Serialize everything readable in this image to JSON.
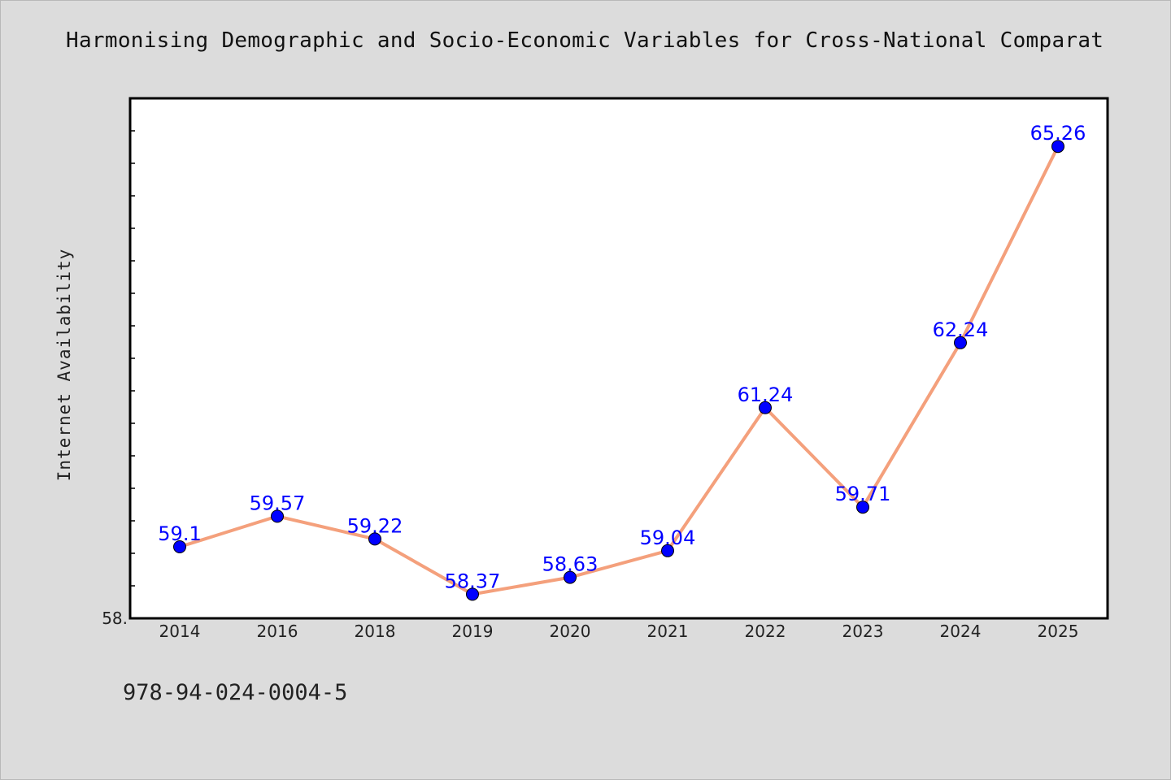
{
  "figure": {
    "title": "Harmonising Demographic and Socio-Economic Variables for Cross-National Comparat",
    "footer_code": "978-94-024-0004-5"
  },
  "chart_data": {
    "type": "line",
    "title": "Harmonising Demographic and Socio-Economic Variables for Cross-National Comparat",
    "xlabel": "",
    "ylabel": "Internet Availability",
    "categories": [
      "2014",
      "2016",
      "2018",
      "2019",
      "2020",
      "2021",
      "2022",
      "2023",
      "2024",
      "2025"
    ],
    "series": [
      {
        "values": [
          59.1,
          59.57,
          59.22,
          58.37,
          58.63,
          59.04,
          61.24,
          59.71,
          62.24,
          65.26
        ],
        "data_labels": [
          "59.1",
          "59.57",
          "59.22",
          "58.37",
          "58.63",
          "59.04",
          "61.24",
          "59.71",
          "62.24",
          "65.26"
        ]
      }
    ],
    "ylim": [
      58.0,
      66.0
    ],
    "y_tick_labels": [
      "58."
    ],
    "grid": false,
    "legend": "none",
    "colors": {
      "line": "#f4a07c",
      "marker": "#0000ff",
      "data_label": "#0000ff",
      "plot_background": "#ffffff",
      "figure_background": "#dcdcdc"
    }
  }
}
